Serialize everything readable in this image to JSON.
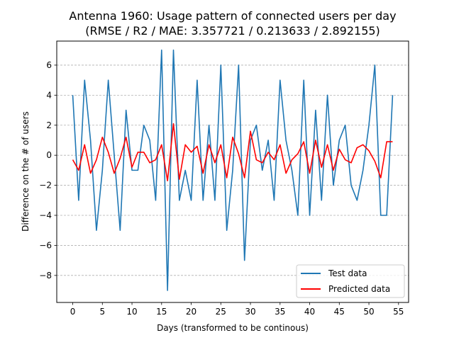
{
  "chart_data": {
    "type": "line",
    "title": "Antenna 1960: Usage pattern of connected users per day",
    "subtitle": "(RMSE / R2 / MAE: 3.357721 / 0.213633 / 2.892155)",
    "xlabel": "Days (transformed to be continous)",
    "ylabel": "Difference on the # of users",
    "xlim": [
      -2.7,
      56.7
    ],
    "ylim": [
      -9.8,
      7.6
    ],
    "xticks": [
      0,
      5,
      10,
      15,
      20,
      25,
      30,
      35,
      40,
      45,
      50,
      55
    ],
    "yticks": [
      -8,
      -6,
      -4,
      -2,
      0,
      2,
      4,
      6
    ],
    "grid": "horizontal-dashed",
    "legend_position": "bottom-right",
    "series": [
      {
        "name": "Test data",
        "color": "#1f77b4",
        "x": [
          0,
          1,
          2,
          3,
          4,
          5,
          6,
          7,
          8,
          9,
          10,
          11,
          12,
          13,
          14,
          15,
          16,
          17,
          18,
          19,
          20,
          21,
          22,
          23,
          24,
          25,
          26,
          27,
          28,
          29,
          30,
          31,
          32,
          33,
          34,
          35,
          36,
          37,
          38,
          39,
          40,
          41,
          42,
          43,
          44,
          45,
          46,
          47,
          48,
          49,
          50,
          51,
          52,
          53,
          54
        ],
        "values": [
          4,
          -3,
          5,
          1,
          -5,
          -1,
          5,
          0,
          -5,
          3,
          -1,
          -1,
          2,
          1,
          -3,
          7,
          -9,
          7,
          -3,
          -1,
          -3,
          5,
          -3,
          2,
          -3,
          6,
          -5,
          -1,
          6,
          -7,
          1,
          2,
          -1,
          1,
          -3,
          5,
          1,
          -1,
          -4,
          5,
          -4,
          3,
          -3,
          4,
          -2,
          1,
          2,
          -2,
          -3,
          -1,
          2,
          6,
          -4,
          -4,
          4
        ]
      },
      {
        "name": "Predicted data",
        "color": "#ff0000",
        "x": [
          0,
          1,
          2,
          3,
          4,
          5,
          6,
          7,
          8,
          9,
          10,
          11,
          12,
          13,
          14,
          15,
          16,
          17,
          18,
          19,
          20,
          21,
          22,
          23,
          24,
          25,
          26,
          27,
          28,
          29,
          30,
          31,
          32,
          33,
          34,
          35,
          36,
          37,
          38,
          39,
          40,
          41,
          42,
          43,
          44,
          45,
          46,
          47,
          48,
          49,
          50,
          51,
          52,
          53,
          54
        ],
        "values": [
          -0.3,
          -1.0,
          0.7,
          -1.2,
          -0.3,
          1.2,
          0.2,
          -1.2,
          -0.2,
          1.2,
          -0.8,
          0.2,
          0.2,
          -0.5,
          -0.3,
          0.7,
          -1.7,
          2.1,
          -1.6,
          0.7,
          0.2,
          0.6,
          -1.2,
          0.7,
          -0.5,
          0.7,
          -1.5,
          1.2,
          0.1,
          -1.5,
          1.6,
          -0.3,
          -0.5,
          0.2,
          -0.3,
          0.7,
          -1.2,
          -0.3,
          0.1,
          0.9,
          -1.2,
          1.0,
          -0.8,
          0.7,
          -1.0,
          0.4,
          -0.3,
          -0.5,
          0.5,
          0.7,
          0.3,
          -0.4,
          -1.5,
          0.9,
          0.9
        ]
      }
    ]
  }
}
